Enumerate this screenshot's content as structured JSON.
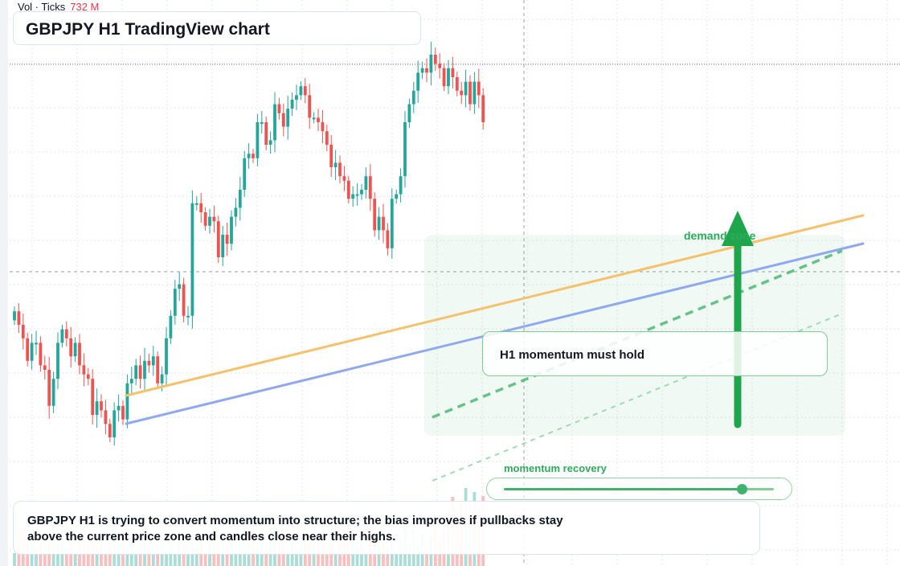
{
  "header": {
    "title": "GBPJPY H1 TradingView chart"
  },
  "volume_legend": {
    "label": "Vol · Ticks",
    "value": "732 M"
  },
  "annotations": {
    "callout": "H1 momentum must hold",
    "zone_label": "demand zone",
    "momentum_label": "momentum recovery",
    "momentum_level": 0.88,
    "note": "GBPJPY H1 is trying to convert momentum into structure; the bias improves if pullbacks stay above the current price zone and candles close near their highs."
  },
  "colors": {
    "up": "#26a69a",
    "down": "#ef5350",
    "trend_orange": "#f5c26b",
    "trend_blue": "#8fa8f0",
    "accent_green": "#1fa64c",
    "volume_up": "#8fd1c8",
    "volume_down": "#f4a9a8",
    "grid": "#e3e6ec"
  },
  "chart_data": {
    "type": "candlestick",
    "title": "GBPJPY H1 TradingView chart",
    "volume_label": "Vol · Ticks",
    "last_volume": "732 M",
    "closes": [
      0.38,
      0.35,
      0.32,
      0.27,
      0.31,
      0.31,
      0.26,
      0.25,
      0.17,
      0.23,
      0.31,
      0.34,
      0.32,
      0.28,
      0.31,
      0.26,
      0.24,
      0.23,
      0.15,
      0.18,
      0.16,
      0.13,
      0.1,
      0.16,
      0.17,
      0.14,
      0.22,
      0.23,
      0.26,
      0.23,
      0.27,
      0.26,
      0.28,
      0.22,
      0.24,
      0.32,
      0.37,
      0.43,
      0.44,
      0.37,
      0.37,
      0.62,
      0.62,
      0.6,
      0.57,
      0.59,
      0.58,
      0.5,
      0.55,
      0.53,
      0.59,
      0.61,
      0.65,
      0.72,
      0.73,
      0.72,
      0.8,
      0.8,
      0.75,
      0.76,
      0.84,
      0.82,
      0.79,
      0.83,
      0.85,
      0.86,
      0.88,
      0.86,
      0.81,
      0.81,
      0.8,
      0.78,
      0.75,
      0.7,
      0.71,
      0.68,
      0.67,
      0.63,
      0.64,
      0.64,
      0.65,
      0.68,
      0.63,
      0.56,
      0.59,
      0.56,
      0.52,
      0.63,
      0.64,
      0.68,
      0.8,
      0.84,
      0.87,
      0.91,
      0.92,
      0.91,
      0.95,
      0.93,
      0.92,
      0.88,
      0.92,
      0.9,
      0.87,
      0.86,
      0.89,
      0.84,
      0.89,
      0.86,
      0.8
    ]
  }
}
